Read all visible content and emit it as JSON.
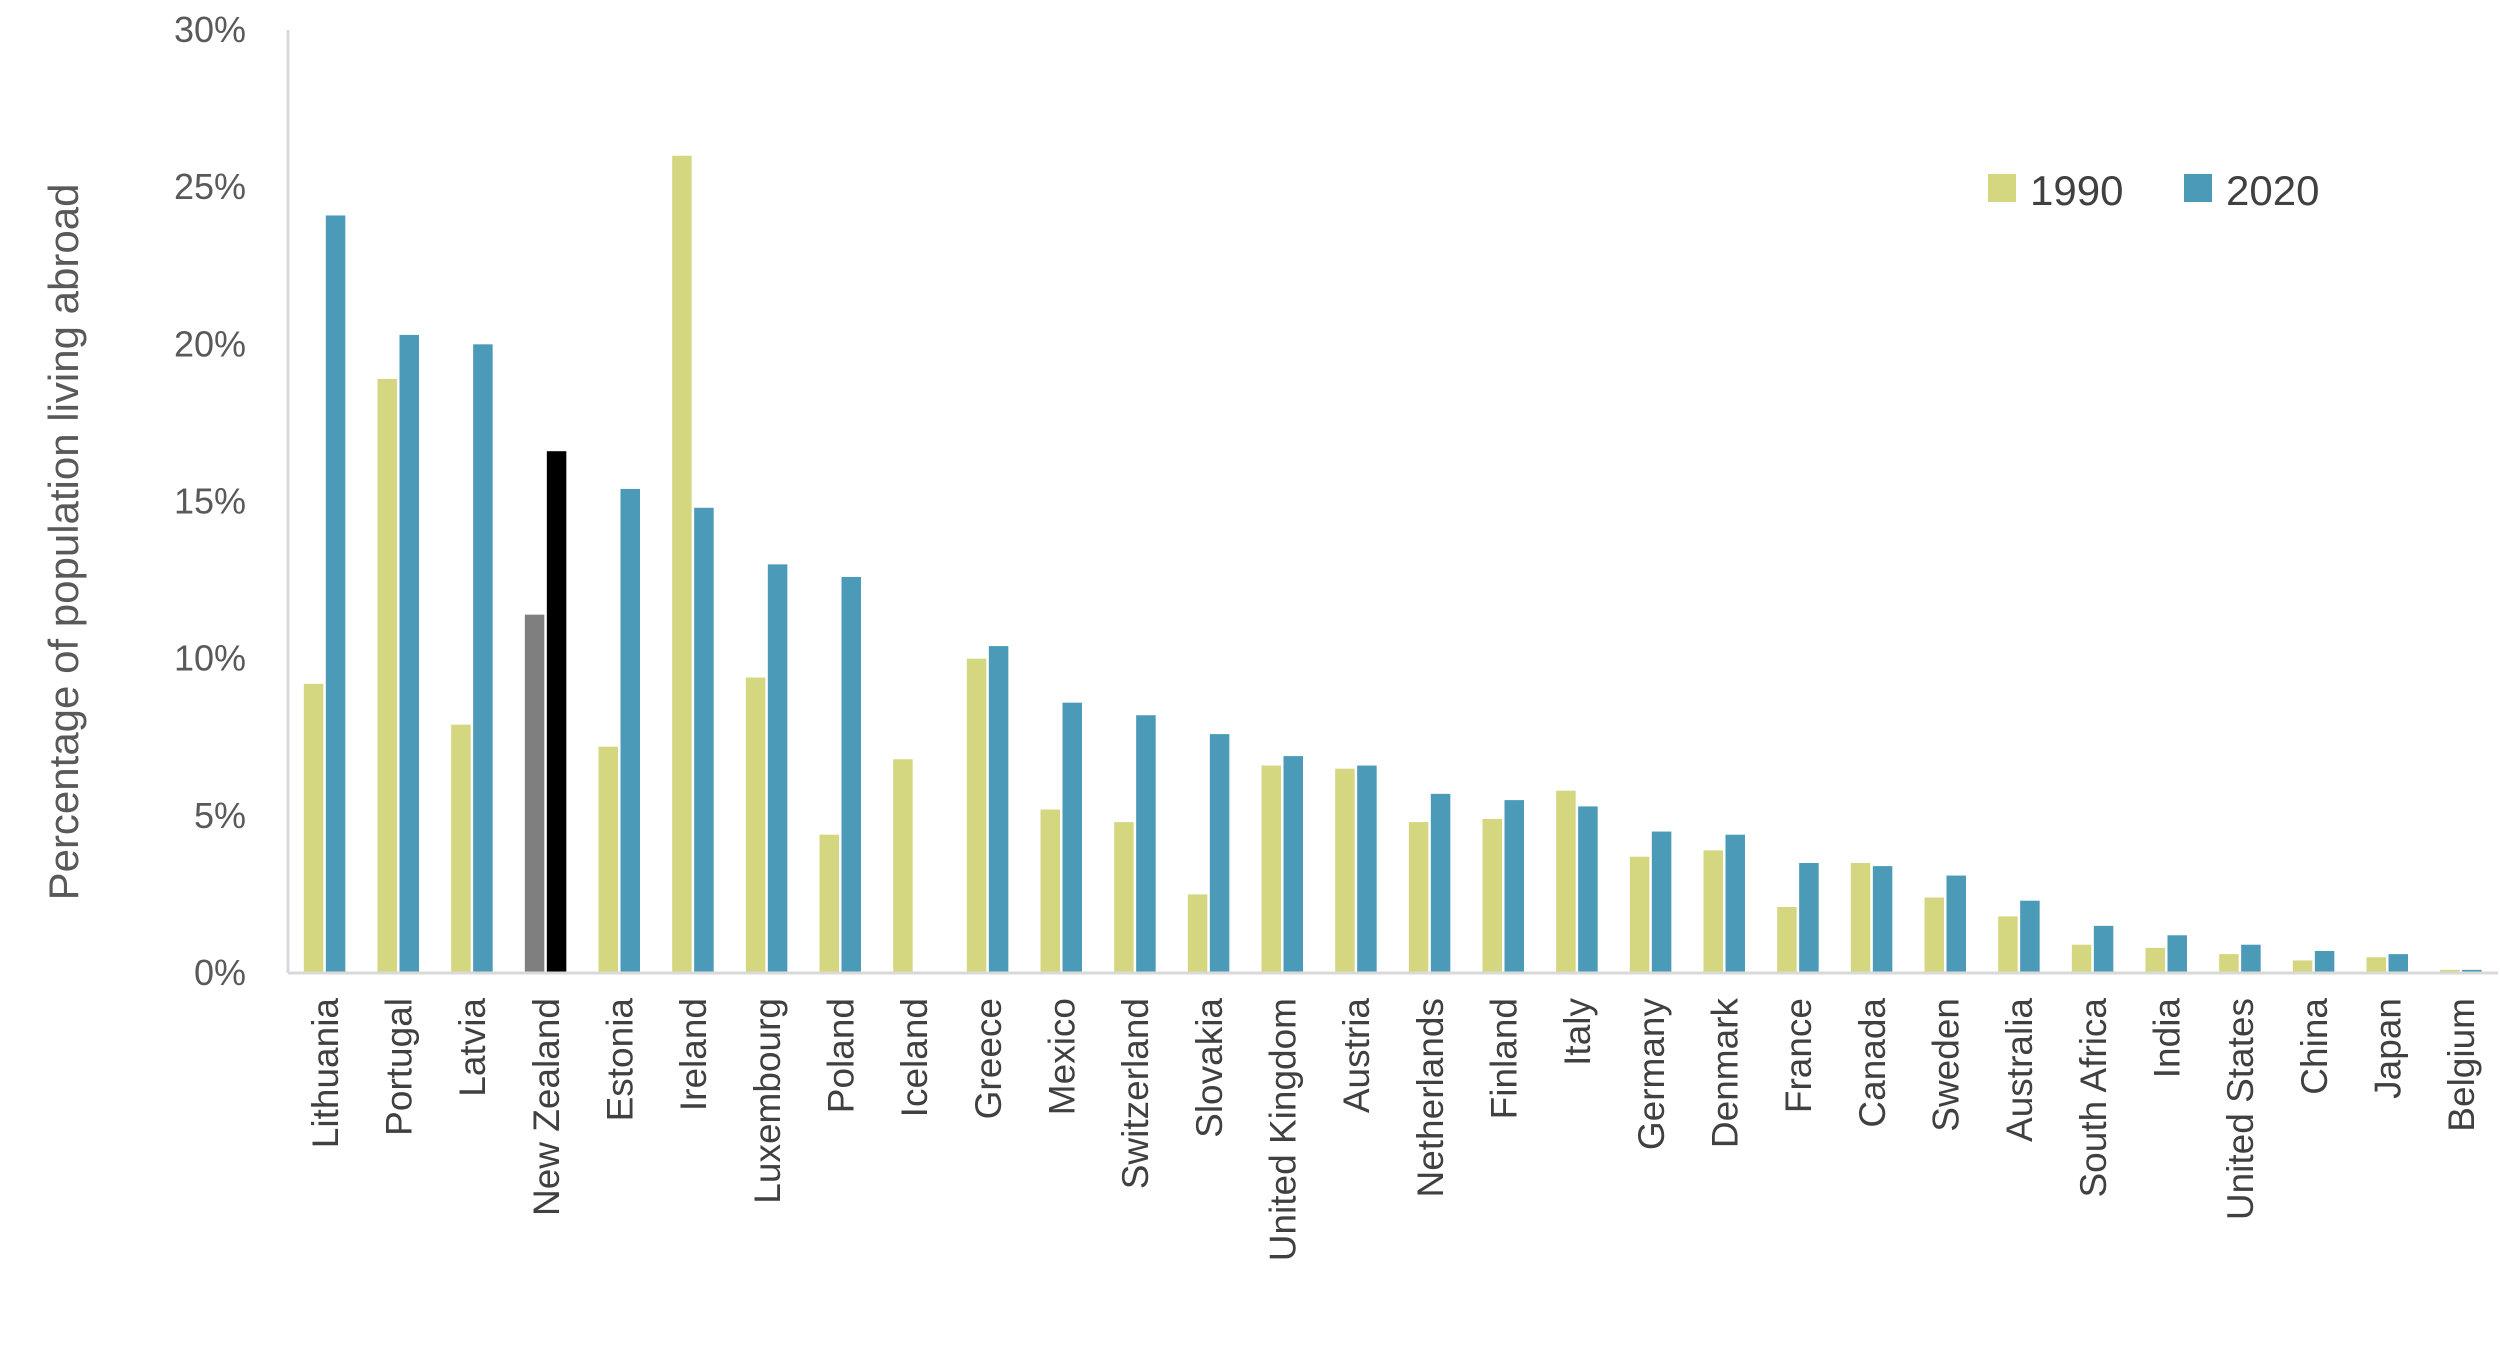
{
  "chart_data": {
    "type": "bar",
    "ylabel": "Percentage of population living abroad",
    "ylim": [
      0,
      30
    ],
    "yticks": [
      "0%",
      "5%",
      "10%",
      "15%",
      "20%",
      "25%",
      "30%"
    ],
    "grid": false,
    "legend_position": "top-right",
    "categories": [
      "Lithuania",
      "Portugal",
      "Latvia",
      "New Zealand",
      "Estonia",
      "Ireland",
      "Luxembourg",
      "Poland",
      "Iceland",
      "Greece",
      "Mexico",
      "Switzerland",
      "Slovakia",
      "United Kingdom",
      "Austria",
      "Netherlands",
      "Finland",
      "Italy",
      "Germany",
      "Denmark",
      "France",
      "Canada",
      "Sweden",
      "Australia",
      "South Africa",
      "India",
      "United States",
      "China",
      "Japan",
      "Belgium"
    ],
    "highlight_category": "New Zealand",
    "series": [
      {
        "name": "1990",
        "color": "#d4d77f",
        "highlight_color": "#7f7f7f",
        "values": [
          9.2,
          18.9,
          7.9,
          11.4,
          7.2,
          26.0,
          9.4,
          4.4,
          6.8,
          10.0,
          5.2,
          4.8,
          2.5,
          6.6,
          6.5,
          4.8,
          4.9,
          5.8,
          3.7,
          3.9,
          2.1,
          3.5,
          2.4,
          1.8,
          0.9,
          0.8,
          0.6,
          0.4,
          0.5,
          0.1
        ]
      },
      {
        "name": "2020",
        "color": "#4a9ab8",
        "highlight_color": "#000000",
        "values": [
          24.1,
          20.3,
          20.0,
          16.6,
          15.4,
          14.8,
          13.0,
          12.6,
          0.0,
          10.4,
          8.6,
          8.2,
          7.6,
          6.9,
          6.6,
          5.7,
          5.5,
          5.3,
          4.5,
          4.4,
          3.5,
          3.4,
          3.1,
          2.3,
          1.5,
          1.2,
          0.9,
          0.7,
          0.6,
          0.1
        ]
      }
    ]
  }
}
